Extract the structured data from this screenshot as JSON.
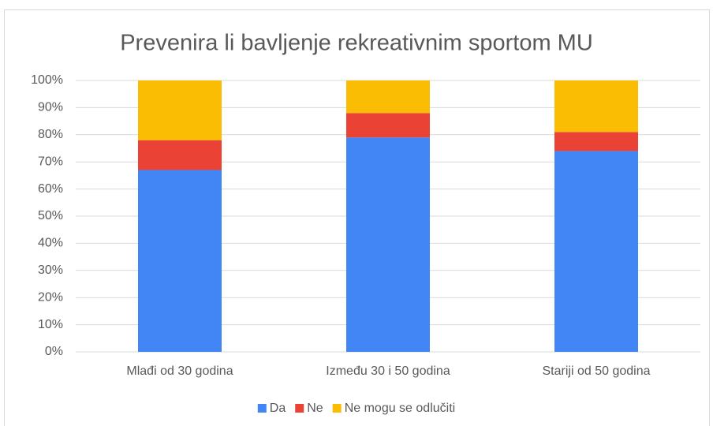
{
  "chart_data": {
    "type": "stacked_bar",
    "title": "Prevenira li bavljenje rekreativnim sportom MU",
    "categories": [
      "Mlađi od 30 godina",
      "Između 30 i 50 godina",
      "Stariji od 50 godina"
    ],
    "series": [
      {
        "name": "Da",
        "color": "#4285f4",
        "values": [
          67,
          79,
          74
        ]
      },
      {
        "name": "Ne",
        "color": "#ea4335",
        "values": [
          11,
          9,
          7
        ]
      },
      {
        "name": "Ne mogu se odlučiti",
        "color": "#fbbc04",
        "values": [
          22,
          12,
          19
        ]
      }
    ],
    "ylim": [
      0,
      100
    ],
    "yticks": [
      {
        "value": 0,
        "label": "0%"
      },
      {
        "value": 10,
        "label": "10%"
      },
      {
        "value": 20,
        "label": "20%"
      },
      {
        "value": 30,
        "label": "30%"
      },
      {
        "value": 40,
        "label": "40%"
      },
      {
        "value": 50,
        "label": "50%"
      },
      {
        "value": 60,
        "label": "60%"
      },
      {
        "value": 70,
        "label": "70%"
      },
      {
        "value": 80,
        "label": "80%"
      },
      {
        "value": 90,
        "label": "90%"
      },
      {
        "value": 100,
        "label": "100%"
      }
    ],
    "grid": true,
    "legend": "bottom"
  }
}
